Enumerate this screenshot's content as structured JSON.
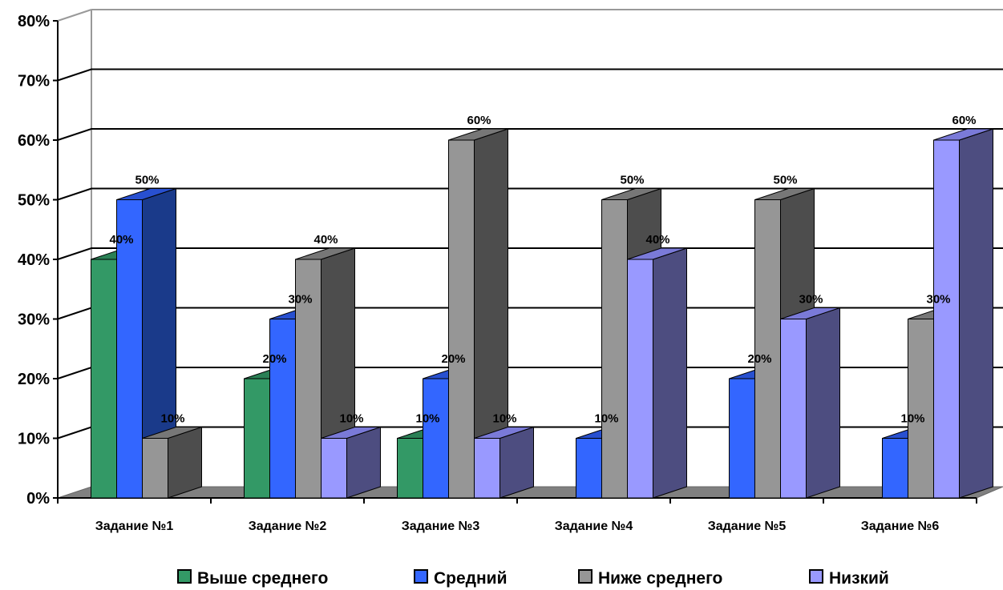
{
  "chart_data": {
    "type": "bar",
    "categories": [
      "Задание №1",
      "Задание №2",
      "Задание №3",
      "Задание №4",
      "Задание №5",
      "Задание №6"
    ],
    "series": [
      {
        "name": "Выше среднего",
        "color": "#339966",
        "side": "#1f6b42",
        "top": "#2a8055",
        "values": [
          40,
          20,
          10,
          0,
          0,
          0
        ]
      },
      {
        "name": "Средний",
        "color": "#3366ff",
        "side": "#1a3a8a",
        "top": "#2850d0",
        "values": [
          50,
          30,
          20,
          10,
          20,
          10
        ]
      },
      {
        "name": "Ниже среднего",
        "color": "#969696",
        "side": "#4d4d4d",
        "top": "#777777",
        "values": [
          10,
          40,
          60,
          50,
          50,
          30
        ]
      },
      {
        "name": "Низкий",
        "color": "#9999ff",
        "side": "#4d4d80",
        "top": "#7a7ad8",
        "values": [
          0,
          10,
          10,
          40,
          30,
          60
        ]
      }
    ],
    "value_labels": [
      [
        "40%",
        "20%",
        "10%",
        "",
        "",
        ""
      ],
      [
        "50%",
        "30%",
        "20%",
        "10%",
        "20%",
        "10%"
      ],
      [
        "10%",
        "40%",
        "60%",
        "50%",
        "50%",
        "30%"
      ],
      [
        "",
        "10%",
        "10%",
        "40%",
        "30%",
        "60%"
      ]
    ],
    "y_ticks": [
      "0%",
      "10%",
      "20%",
      "30%",
      "40%",
      "50%",
      "60%",
      "70%",
      "80%"
    ],
    "ylim": [
      0,
      80
    ],
    "grid": true,
    "legend_position": "bottom"
  }
}
